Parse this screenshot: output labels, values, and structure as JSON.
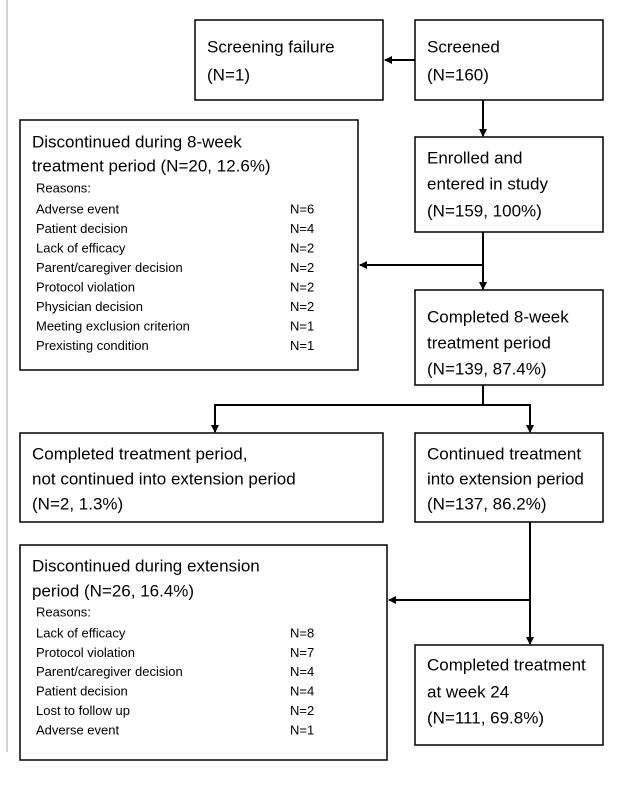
{
  "nodes": [
    {
      "lines": [
        "Screening failure",
        "(N=1)"
      ]
    },
    {
      "lines": [
        "Screened",
        "(N=160)"
      ]
    },
    {
      "lines": [
        "Discontinued during 8-week",
        "treatment period (N=20, 12.6%)"
      ],
      "reasons_heading": "Reasons:",
      "reasons": [
        {
          "label": "Adverse event",
          "count": "N=6"
        },
        {
          "label": "Patient decision",
          "count": "N=4"
        },
        {
          "label": "Lack of efficacy",
          "count": "N=2"
        },
        {
          "label": "Parent/caregiver decision",
          "count": "N=2"
        },
        {
          "label": "Protocol violation",
          "count": "N=2"
        },
        {
          "label": "Physician decision",
          "count": "N=2"
        },
        {
          "label": "Meeting exclusion criterion",
          "count": "N=1"
        },
        {
          "label": "Prexisting condition",
          "count": "N=1"
        }
      ]
    },
    {
      "lines": [
        "Enrolled and",
        "entered in study",
        "(N=159, 100%)"
      ]
    },
    {
      "lines": [
        "Completed 8-week",
        "treatment period",
        "(N=139, 87.4%)"
      ]
    },
    {
      "lines": [
        "Completed treatment period,",
        "not continued into extension period",
        "(N=2, 1.3%)"
      ]
    },
    {
      "lines": [
        "Continued treatment",
        "into extension period",
        "(N=137, 86.2%)"
      ]
    },
    {
      "lines": [
        "Discontinued during extension",
        "period (N=26, 16.4%)"
      ],
      "reasons_heading": "Reasons:",
      "reasons": [
        {
          "label": "Lack of efficacy",
          "count": "N=8"
        },
        {
          "label": "Protocol violation",
          "count": "N=7"
        },
        {
          "label": "Parent/caregiver decision",
          "count": "N=4"
        },
        {
          "label": "Patient decision",
          "count": "N=4"
        },
        {
          "label": "Lost to follow up",
          "count": "N=2"
        },
        {
          "label": "Adverse event",
          "count": "N=1"
        }
      ]
    },
    {
      "lines": [
        "Completed treatment",
        "at week 24",
        "(N=111, 69.8%)"
      ]
    }
  ]
}
